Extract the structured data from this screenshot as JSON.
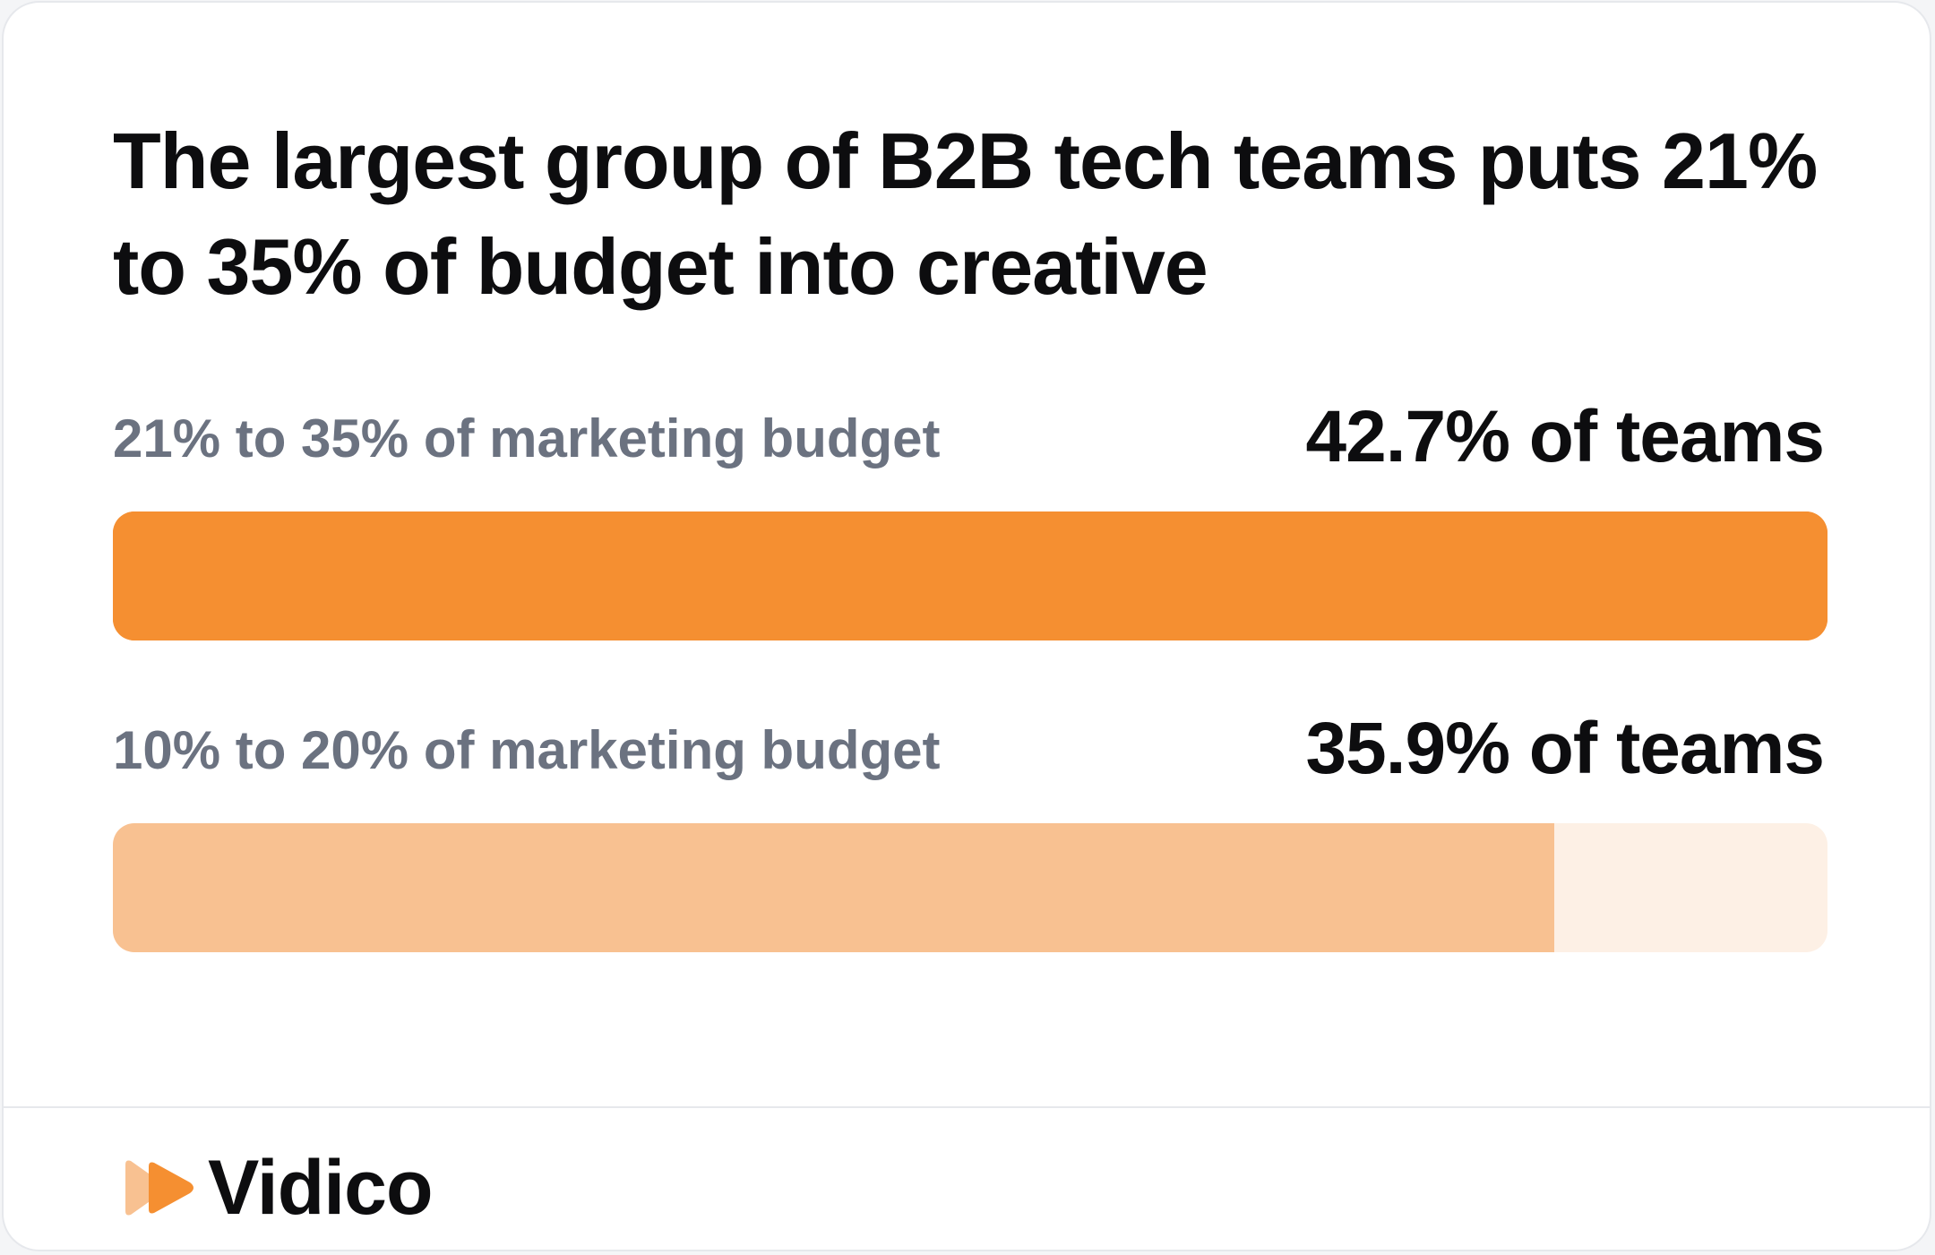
{
  "card": {
    "title": "The largest group of B2B tech teams puts 21% to 35% of budget into creative"
  },
  "colors": {
    "primary_fill": "#f58f31",
    "primary_track": "#f58f31",
    "secondary_fill": "#f8c191",
    "secondary_track": "#fdf0e5",
    "logo_light": "#f8c191",
    "logo_dark": "#f58f31"
  },
  "chart_data": {
    "type": "bar",
    "orientation": "horizontal",
    "title": "The largest group of B2B tech teams puts 21% to 35% of budget into creative",
    "categories": [
      "21% to 35% of marketing budget",
      "10% to 20% of marketing budget"
    ],
    "values": [
      42.7,
      35.9
    ],
    "value_labels": [
      "42.7% of teams",
      "35.9% of teams"
    ],
    "unit": "%",
    "xlim": [
      0,
      42.7
    ],
    "grid": false,
    "legend": "none"
  },
  "brand": {
    "name": "Vidico",
    "logo_icon": "play-logo-icon"
  }
}
